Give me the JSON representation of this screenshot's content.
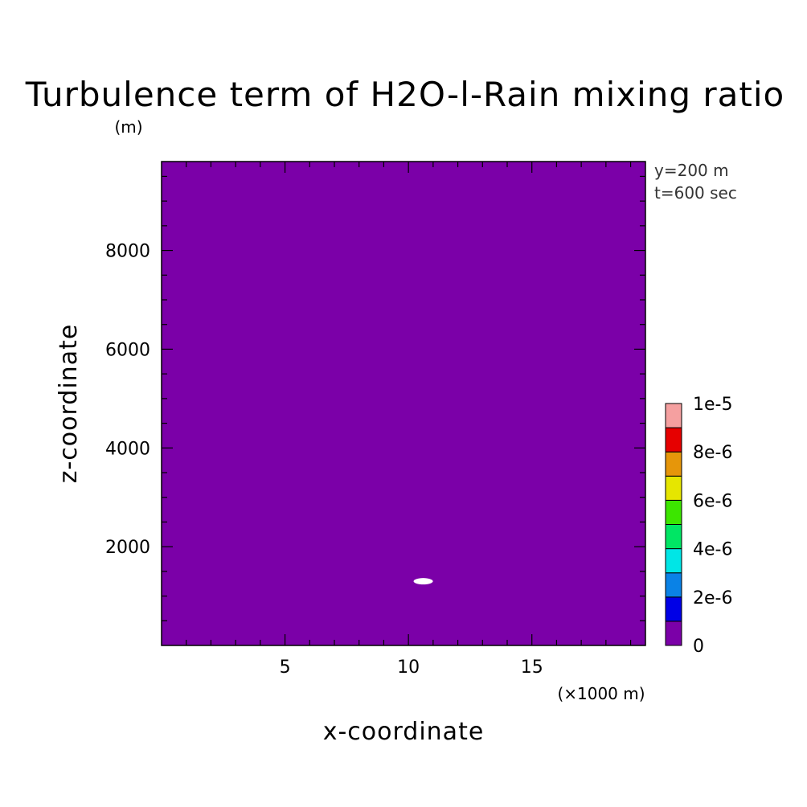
{
  "chart_data": {
    "type": "heatmap",
    "title": "Turbulence term of H2O-l-Rain mixing ratio",
    "title_unit": "(m)",
    "xlabel": "x-coordinate",
    "ylabel": "z-coordinate",
    "x_unit": "(×1000 m)",
    "xlim": [
      0,
      19.6
    ],
    "ylim": [
      0,
      9800
    ],
    "x_ticks": [
      "5",
      "10",
      "15"
    ],
    "y_ticks": [
      "2000",
      "4000",
      "6000",
      "8000"
    ],
    "annotations": [
      "y=200 m",
      "t=600 sec"
    ],
    "background_level_color": "#7b00a8",
    "features": [
      {
        "label": "white patch",
        "x": 10.6,
        "z": 1300,
        "color": "#ffffff"
      }
    ],
    "colorbar": {
      "levels": [
        0,
        1e-06,
        2e-06,
        3e-06,
        4e-06,
        5e-06,
        6e-06,
        7e-06,
        8e-06,
        9e-06,
        1e-05
      ],
      "tick_labels": [
        "0",
        "2e-6",
        "4e-6",
        "6e-6",
        "8e-6",
        "1e-5"
      ],
      "colors": [
        "#7b00a8",
        "#0000e6",
        "#0a82e6",
        "#00e6e6",
        "#00e664",
        "#3ce600",
        "#e6e600",
        "#e6960a",
        "#e60000",
        "#f5a0a0"
      ]
    }
  }
}
